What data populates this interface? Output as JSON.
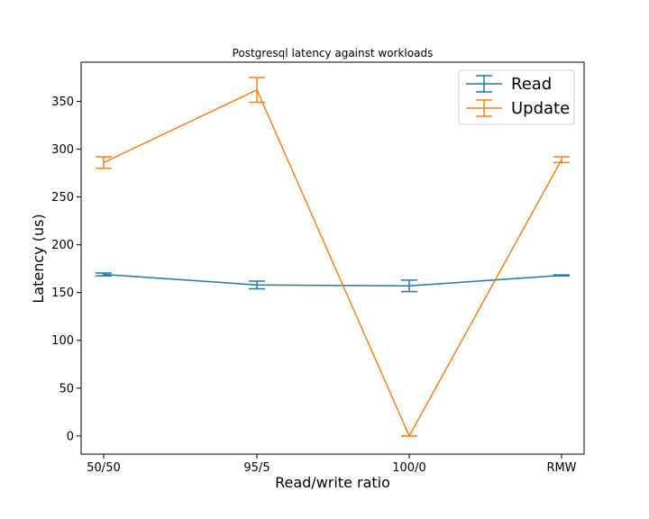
{
  "chart_data": {
    "type": "line",
    "title": "Postgresql latency against workloads",
    "xlabel": "Read/write ratio",
    "ylabel": "Latency (us)",
    "categories": [
      "50/50",
      "95/5",
      "100/0",
      "RMW"
    ],
    "yticks": [
      0,
      50,
      100,
      150,
      200,
      250,
      300,
      350
    ],
    "ylim": [
      -19,
      391
    ],
    "grid": false,
    "legend_position": "top-right",
    "error_bars": true,
    "series": [
      {
        "name": "Read",
        "color": "#1f77b4",
        "values": [
          169,
          158,
          157,
          168
        ],
        "errors": [
          1.5,
          4,
          6,
          0.5
        ]
      },
      {
        "name": "Update",
        "color": "#ff7f0e",
        "values": [
          286,
          362,
          0,
          289
        ],
        "errors": [
          6,
          13,
          0,
          3
        ]
      }
    ]
  }
}
